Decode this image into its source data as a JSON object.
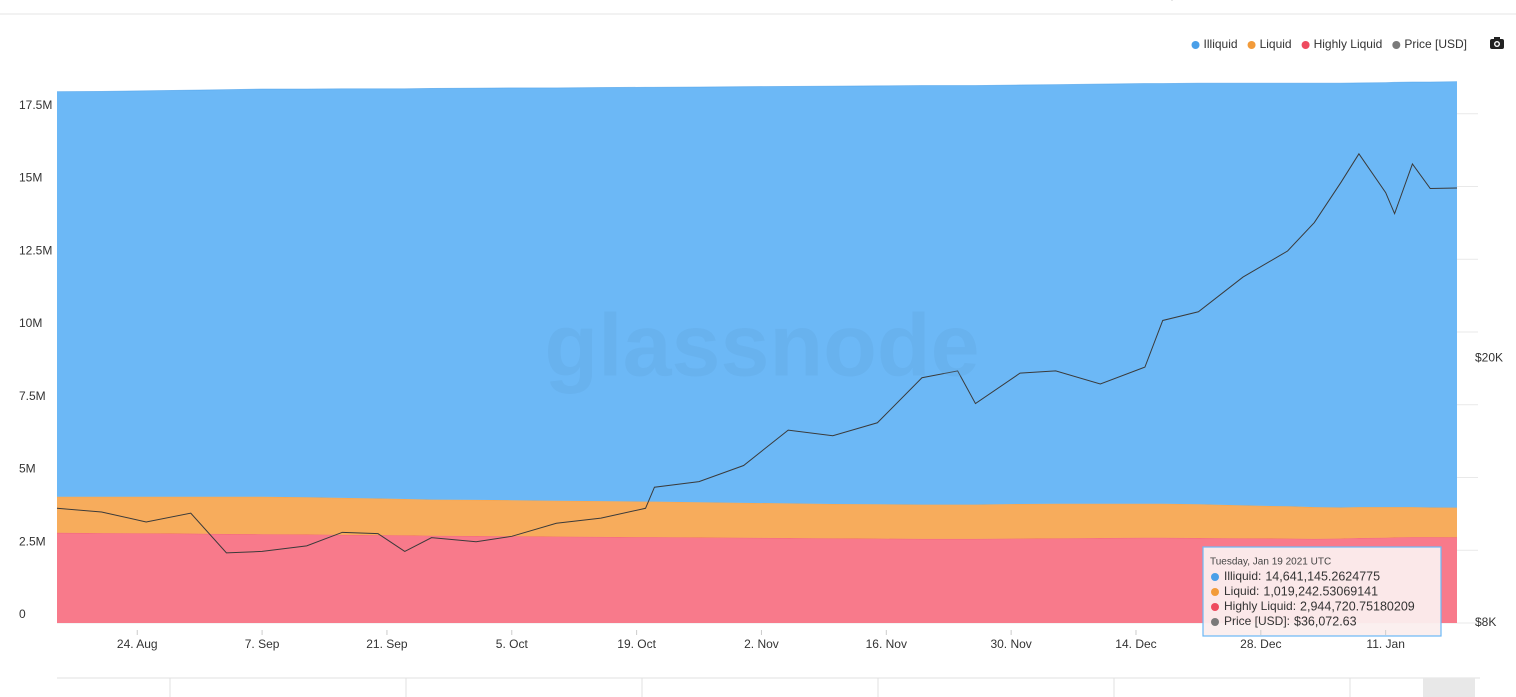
{
  "chart_data": {
    "type": "stacked-area",
    "watermark": "glassnode",
    "x": [
      "2020-08-15",
      "2020-08-20",
      "2020-08-25",
      "2020-08-30",
      "2020-09-03",
      "2020-09-07",
      "2020-09-12",
      "2020-09-16",
      "2020-09-20",
      "2020-09-23",
      "2020-09-26",
      "2020-10-01",
      "2020-10-05",
      "2020-10-10",
      "2020-10-15",
      "2020-10-20",
      "2020-10-21",
      "2020-10-26",
      "2020-10-31",
      "2020-11-05",
      "2020-11-10",
      "2020-11-15",
      "2020-11-20",
      "2020-11-24",
      "2020-11-26",
      "2020-12-01",
      "2020-12-05",
      "2020-12-10",
      "2020-12-15",
      "2020-12-17",
      "2020-12-21",
      "2020-12-26",
      "2020-12-31",
      "2021-01-03",
      "2021-01-06",
      "2021-01-08",
      "2021-01-11",
      "2021-01-12",
      "2021-01-14",
      "2021-01-16",
      "2021-01-19"
    ],
    "xlim": [
      "2020-08-15",
      "2021-01-19"
    ],
    "xticks": [
      {
        "value": "2020-08-24",
        "label": "24. Aug"
      },
      {
        "value": "2020-09-07",
        "label": "7. Sep"
      },
      {
        "value": "2020-09-21",
        "label": "21. Sep"
      },
      {
        "value": "2020-10-05",
        "label": "5. Oct"
      },
      {
        "value": "2020-10-19",
        "label": "19. Oct"
      },
      {
        "value": "2020-11-02",
        "label": "2. Nov"
      },
      {
        "value": "2020-11-16",
        "label": "16. Nov"
      },
      {
        "value": "2020-11-30",
        "label": "30. Nov"
      },
      {
        "value": "2020-12-14",
        "label": "14. Dec"
      },
      {
        "value": "2020-12-28",
        "label": "28. Dec"
      },
      {
        "value": "2021-01-11",
        "label": "11. Jan"
      }
    ],
    "ylim": [
      0,
      20000000
    ],
    "yticks": [
      0,
      {
        "value": 2500000,
        "label": "2.5M"
      },
      {
        "value": 5000000,
        "label": "5M"
      },
      {
        "value": 7500000,
        "label": "7.5M"
      },
      {
        "value": 10000000,
        "label": "10M"
      },
      {
        "value": 12500000,
        "label": "12.5M"
      },
      {
        "value": 15000000,
        "label": "15M"
      },
      {
        "value": 17500000,
        "label": "17.5M"
      }
    ],
    "y2lim": [
      8000,
      60000
    ],
    "y2ticks": [
      {
        "value": 8000,
        "label": "$8K"
      },
      {
        "value": 20000,
        "label": "$20K"
      }
    ],
    "y2_log": true,
    "grid": true,
    "legend": "top-right",
    "series": [
      {
        "name": "Illiquid",
        "color": "#6cb8f6",
        "legend_color": "#4a9fe8",
        "values": [
          13920000,
          13930000,
          13950000,
          13970000,
          13990000,
          14010000,
          14030000,
          14060000,
          14080000,
          14100000,
          14130000,
          14150000,
          14170000,
          14190000,
          14210000,
          14240000,
          14240000,
          14270000,
          14300000,
          14330000,
          14360000,
          14380000,
          14400000,
          14400000,
          14400000,
          14400000,
          14400000,
          14420000,
          14440000,
          14440000,
          14470000,
          14510000,
          14540000,
          14570000,
          14580000,
          14580000,
          14590000,
          14600000,
          14610000,
          14620000,
          14641145.2624775
        ]
      },
      {
        "name": "Liquid",
        "color": "#f7ac5c",
        "legend_color": "#f29b3a",
        "values": [
          1240000,
          1250000,
          1260000,
          1270000,
          1280000,
          1290000,
          1280000,
          1270000,
          1260000,
          1250000,
          1240000,
          1240000,
          1240000,
          1230000,
          1230000,
          1220000,
          1220000,
          1210000,
          1200000,
          1190000,
          1180000,
          1180000,
          1180000,
          1180000,
          1180000,
          1190000,
          1190000,
          1180000,
          1170000,
          1170000,
          1160000,
          1130000,
          1110000,
          1090000,
          1070000,
          1060000,
          1050000,
          1040000,
          1030000,
          1020000,
          1019242.53069141
        ]
      },
      {
        "name": "Highly Liquid",
        "color": "#f87a8b",
        "legend_color": "#ee4b5f",
        "values": [
          3100000,
          3090000,
          3080000,
          3070000,
          3060000,
          3050000,
          3040000,
          3030000,
          3020000,
          3010000,
          3000000,
          2990000,
          2980000,
          2970000,
          2960000,
          2950000,
          2950000,
          2940000,
          2930000,
          2920000,
          2910000,
          2900000,
          2890000,
          2890000,
          2890000,
          2900000,
          2910000,
          2920000,
          2930000,
          2930000,
          2920000,
          2910000,
          2900000,
          2890000,
          2900000,
          2920000,
          2930000,
          2940000,
          2950000,
          2950000,
          2944720.75180209
        ]
      },
      {
        "name": "Price [USD]",
        "color": "#3a3a3a",
        "legend_color": "#7a7a7a",
        "axis": "y2",
        "line": true,
        "values": [
          11900,
          11750,
          11350,
          11700,
          10200,
          10250,
          10450,
          10950,
          10900,
          10250,
          10750,
          10600,
          10800,
          11300,
          11500,
          11900,
          12800,
          13050,
          13800,
          15600,
          15300,
          16000,
          18700,
          19150,
          17100,
          19000,
          19150,
          18300,
          19400,
          22800,
          23500,
          26500,
          29000,
          32000,
          36800,
          40600,
          35500,
          33000,
          39200,
          36000,
          36072.63
        ]
      }
    ],
    "tooltip": {
      "title": "Tuesday, Jan 19 2021 UTC",
      "items": [
        {
          "label": "Illiquid:",
          "value": "14,641,145.2624775"
        },
        {
          "label": "Liquid:",
          "value": "1,019,242.53069141"
        },
        {
          "label": "Highly Liquid:",
          "value": "2,944,720.75180209"
        },
        {
          "label": "Price [USD]:",
          "value": "$36,072.63"
        }
      ]
    }
  }
}
